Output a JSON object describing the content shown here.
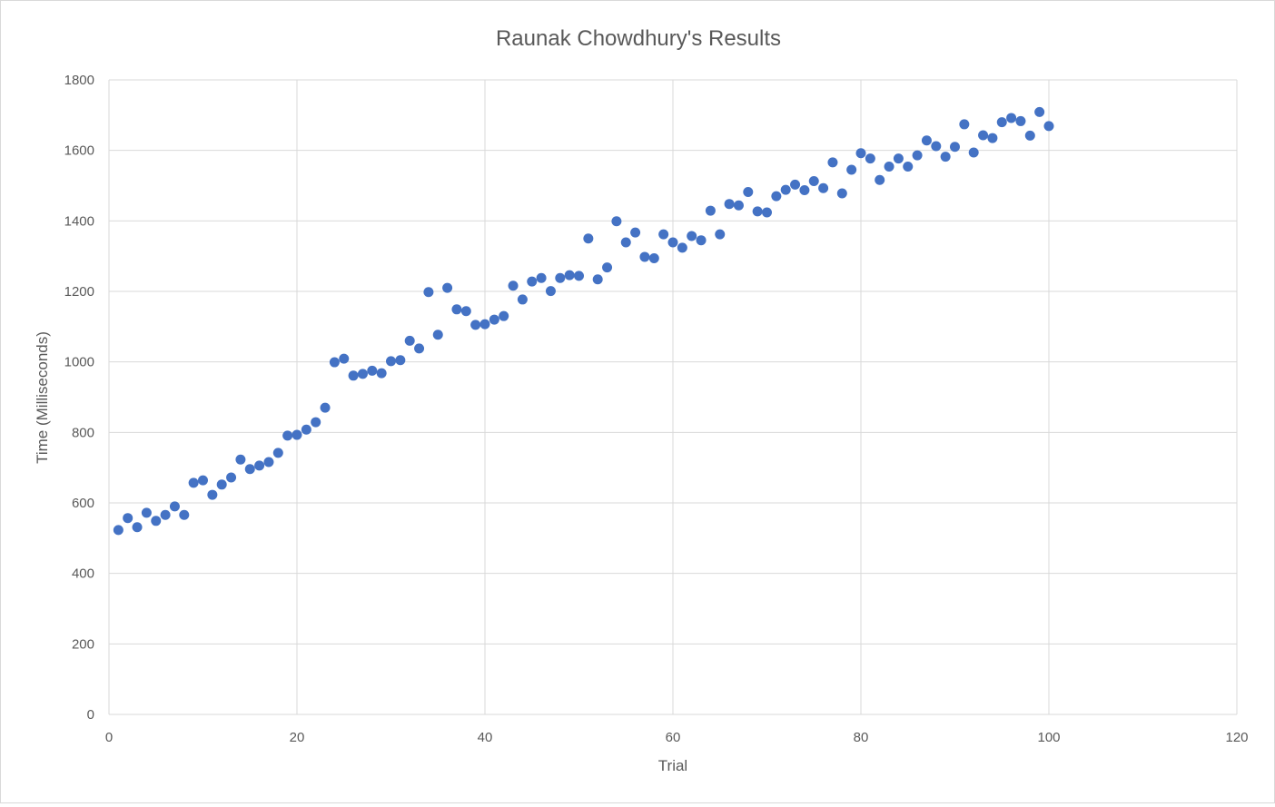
{
  "chart_data": {
    "type": "scatter",
    "title": "Raunak Chowdhury's Results",
    "xlabel": "Trial",
    "ylabel": "Time (Milliseconds)",
    "xlim": [
      0,
      120
    ],
    "ylim": [
      0,
      1800
    ],
    "xticks": [
      0,
      20,
      40,
      60,
      80,
      100,
      120
    ],
    "yticks": [
      0,
      200,
      400,
      600,
      800,
      1000,
      1200,
      1400,
      1600,
      1800
    ],
    "grid": true,
    "marker_color": "#4472c4",
    "series": [
      {
        "x": [
          1,
          2,
          3,
          4,
          5,
          6,
          7,
          8,
          9,
          10,
          11,
          12,
          13,
          14,
          15,
          16,
          17,
          18,
          19,
          20,
          21,
          22,
          23,
          24,
          25,
          26,
          27,
          28,
          29,
          30,
          31,
          32,
          33,
          34,
          35,
          36,
          37,
          38,
          39,
          40,
          41,
          42,
          43,
          44,
          45,
          46,
          47,
          48,
          49,
          50,
          51,
          52,
          53,
          54,
          55,
          56,
          57,
          58,
          59,
          60,
          61,
          62,
          63,
          64,
          65,
          66,
          67,
          68,
          69,
          70,
          71,
          72,
          73,
          74,
          75,
          76,
          77,
          78,
          79,
          80,
          81,
          82,
          83,
          84,
          85,
          86,
          87,
          88,
          89,
          90,
          91,
          92,
          93,
          94,
          95,
          96,
          97,
          98,
          99,
          100
        ],
        "y": [
          523,
          557,
          531,
          572,
          549,
          566,
          590,
          566,
          657,
          664,
          623,
          652,
          672,
          723,
          696,
          706,
          716,
          742,
          791,
          793,
          808,
          829,
          870,
          999,
          1009,
          961,
          966,
          975,
          968,
          1002,
          1005,
          1060,
          1038,
          1198,
          1077,
          1210,
          1149,
          1144,
          1105,
          1107,
          1120,
          1130,
          1216,
          1177,
          1228,
          1238,
          1201,
          1238,
          1246,
          1244,
          1350,
          1234,
          1268,
          1399,
          1339,
          1367,
          1298,
          1294,
          1362,
          1339,
          1324,
          1357,
          1345,
          1429,
          1362,
          1448,
          1444,
          1482,
          1427,
          1424,
          1470,
          1488,
          1503,
          1487,
          1513,
          1493,
          1566,
          1478,
          1545,
          1592,
          1577,
          1516,
          1554,
          1577,
          1554,
          1586,
          1628,
          1612,
          1582,
          1610,
          1674,
          1594,
          1643,
          1635,
          1680,
          1692,
          1683,
          1642,
          1709,
          1669
        ]
      }
    ]
  }
}
